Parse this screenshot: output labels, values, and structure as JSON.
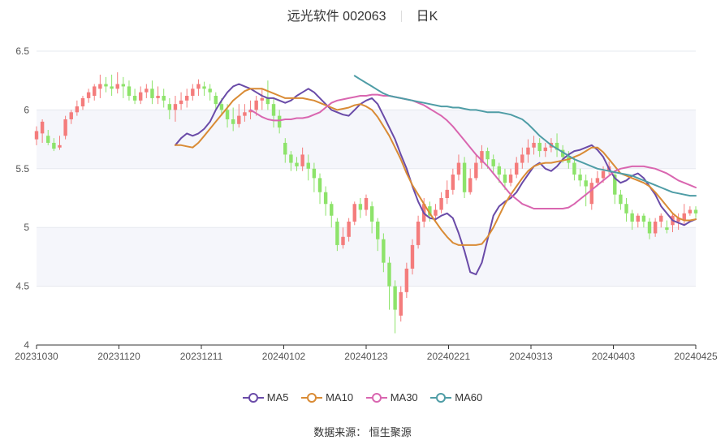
{
  "header": {
    "stock": "远光软件 002063",
    "period": "日K"
  },
  "source": "数据来源： 恒生聚源",
  "chart_data": {
    "type": "candlestick",
    "ylim": [
      4,
      6.5
    ],
    "yticks": [
      "6.5",
      "6",
      "5.5",
      "5",
      "4.5",
      "4"
    ],
    "xticks": [
      "20231030",
      "20231120",
      "20231211",
      "20240102",
      "20240123",
      "20240221",
      "20240313",
      "20240403",
      "20240425"
    ],
    "grid": true,
    "legend_position": "bottom-center",
    "colors": {
      "up": "#f47c7c",
      "down": "#8de36a",
      "MA5": "#6a4ba8",
      "MA10": "#d98b35",
      "MA30": "#d966b0",
      "MA60": "#4f9da6"
    },
    "candles": [
      [
        5.75,
        5.82,
        5.7,
        5.86
      ],
      [
        5.8,
        5.9,
        5.72,
        5.92
      ],
      [
        5.78,
        5.72,
        5.7,
        5.83
      ],
      [
        5.72,
        5.67,
        5.65,
        5.76
      ],
      [
        5.68,
        5.7,
        5.66,
        5.78
      ],
      [
        5.78,
        5.92,
        5.75,
        5.95
      ],
      [
        5.92,
        5.98,
        5.88,
        6.0
      ],
      [
        5.98,
        6.03,
        5.95,
        6.08
      ],
      [
        6.03,
        6.1,
        6.0,
        6.12
      ],
      [
        6.1,
        6.15,
        6.06,
        6.18
      ],
      [
        6.12,
        6.2,
        6.08,
        6.22
      ],
      [
        6.18,
        6.22,
        6.1,
        6.3
      ],
      [
        6.22,
        6.2,
        6.15,
        6.28
      ],
      [
        6.2,
        6.18,
        6.12,
        6.3
      ],
      [
        6.18,
        6.22,
        6.14,
        6.32
      ],
      [
        6.22,
        6.2,
        6.1,
        6.28
      ],
      [
        6.2,
        6.12,
        6.08,
        6.25
      ],
      [
        6.12,
        6.08,
        6.05,
        6.18
      ],
      [
        6.08,
        6.15,
        6.05,
        6.2
      ],
      [
        6.15,
        6.18,
        6.1,
        6.22
      ],
      [
        6.18,
        6.1,
        6.05,
        6.25
      ],
      [
        6.1,
        6.12,
        6.05,
        6.2
      ],
      [
        6.12,
        6.08,
        6.02,
        6.18
      ],
      [
        6.05,
        6.0,
        5.92,
        6.1
      ],
      [
        6.0,
        6.05,
        5.9,
        6.12
      ],
      [
        6.05,
        6.08,
        6.0,
        6.15
      ],
      [
        6.08,
        6.12,
        6.02,
        6.18
      ],
      [
        6.12,
        6.18,
        6.08,
        6.22
      ],
      [
        6.18,
        6.22,
        6.12,
        6.26
      ],
      [
        6.2,
        6.18,
        6.12,
        6.24
      ],
      [
        6.18,
        6.15,
        6.08,
        6.22
      ],
      [
        6.12,
        6.05,
        6.0,
        6.15
      ],
      [
        6.05,
        6.0,
        5.95,
        6.1
      ],
      [
        6.0,
        5.92,
        5.85,
        6.05
      ],
      [
        5.92,
        5.88,
        5.82,
        6.02
      ],
      [
        5.88,
        5.95,
        5.85,
        6.05
      ],
      [
        5.95,
        5.98,
        5.9,
        6.05
      ],
      [
        5.98,
        6.0,
        5.92,
        6.08
      ],
      [
        6.0,
        6.08,
        5.95,
        6.12
      ],
      [
        6.08,
        6.1,
        6.0,
        6.18
      ],
      [
        6.1,
        6.05,
        6.0,
        6.25
      ],
      [
        6.05,
        5.95,
        5.85,
        6.1
      ],
      [
        5.95,
        5.85,
        5.8,
        6.0
      ],
      [
        5.72,
        5.62,
        5.55,
        5.76
      ],
      [
        5.62,
        5.55,
        5.48,
        5.65
      ],
      [
        5.55,
        5.52,
        5.48,
        5.6
      ],
      [
        5.52,
        5.62,
        5.48,
        5.68
      ],
      [
        5.55,
        5.5,
        5.4,
        5.62
      ],
      [
        5.5,
        5.42,
        5.3,
        5.55
      ],
      [
        5.42,
        5.3,
        5.2,
        5.46
      ],
      [
        5.3,
        5.2,
        5.1,
        5.35
      ],
      [
        5.2,
        5.1,
        5.0,
        5.22
      ],
      [
        5.05,
        4.85,
        4.8,
        5.08
      ],
      [
        4.85,
        4.92,
        4.82,
        5.0
      ],
      [
        4.92,
        5.05,
        4.88,
        5.08
      ],
      [
        5.05,
        5.2,
        5.02,
        5.22
      ],
      [
        5.2,
        5.15,
        5.08,
        5.25
      ],
      [
        5.15,
        5.25,
        5.1,
        5.28
      ],
      [
        5.18,
        5.05,
        4.95,
        5.22
      ],
      [
        5.05,
        4.9,
        4.8,
        5.08
      ],
      [
        4.9,
        4.7,
        4.62,
        4.95
      ],
      [
        4.7,
        4.5,
        4.3,
        4.75
      ],
      [
        4.5,
        4.3,
        4.1,
        4.55
      ],
      [
        4.25,
        4.45,
        4.2,
        4.5
      ],
      [
        4.45,
        4.65,
        4.4,
        4.7
      ],
      [
        4.65,
        4.85,
        4.6,
        4.9
      ],
      [
        4.85,
        5.05,
        4.82,
        5.1
      ],
      [
        5.05,
        5.2,
        5.0,
        5.25
      ],
      [
        5.18,
        5.1,
        5.05,
        5.22
      ],
      [
        5.1,
        5.15,
        5.05,
        5.2
      ],
      [
        5.15,
        5.25,
        5.12,
        5.3
      ],
      [
        5.25,
        5.32,
        5.2,
        5.4
      ],
      [
        5.32,
        5.45,
        5.28,
        5.5
      ],
      [
        5.45,
        5.55,
        5.4,
        5.62
      ],
      [
        5.55,
        5.3,
        5.25,
        5.6
      ],
      [
        5.3,
        5.42,
        5.28,
        5.5
      ],
      [
        5.42,
        5.55,
        5.4,
        5.62
      ],
      [
        5.55,
        5.65,
        5.5,
        5.7
      ],
      [
        5.65,
        5.58,
        5.5,
        5.68
      ],
      [
        5.58,
        5.52,
        5.45,
        5.62
      ],
      [
        5.52,
        5.45,
        5.38,
        5.55
      ],
      [
        5.45,
        5.38,
        5.32,
        5.5
      ],
      [
        5.38,
        5.45,
        5.35,
        5.5
      ],
      [
        5.45,
        5.55,
        5.42,
        5.6
      ],
      [
        5.55,
        5.62,
        5.5,
        5.68
      ],
      [
        5.62,
        5.68,
        5.55,
        5.75
      ],
      [
        5.68,
        5.72,
        5.62,
        5.78
      ],
      [
        5.72,
        5.65,
        5.6,
        5.76
      ],
      [
        5.65,
        5.68,
        5.6,
        5.72
      ],
      [
        5.68,
        5.72,
        5.64,
        5.76
      ],
      [
        5.72,
        5.66,
        5.6,
        5.8
      ],
      [
        5.66,
        5.6,
        5.55,
        5.7
      ],
      [
        5.6,
        5.55,
        5.5,
        5.65
      ],
      [
        5.55,
        5.45,
        5.4,
        5.6
      ],
      [
        5.45,
        5.4,
        5.35,
        5.5
      ],
      [
        5.4,
        5.35,
        5.18,
        5.45
      ],
      [
        5.2,
        5.38,
        5.15,
        5.42
      ],
      [
        5.38,
        5.42,
        5.35,
        5.48
      ],
      [
        5.42,
        5.48,
        5.38,
        5.52
      ],
      [
        5.48,
        5.52,
        5.45,
        5.56
      ],
      [
        5.45,
        5.28,
        5.2,
        5.48
      ],
      [
        5.28,
        5.2,
        5.15,
        5.32
      ],
      [
        5.2,
        5.12,
        5.05,
        5.25
      ],
      [
        5.12,
        5.05,
        4.98,
        5.15
      ],
      [
        5.05,
        5.1,
        5.0,
        5.12
      ],
      [
        5.1,
        5.05,
        5.0,
        5.12
      ],
      [
        5.05,
        4.95,
        4.9,
        5.08
      ],
      [
        4.95,
        5.05,
        4.92,
        5.08
      ],
      [
        5.05,
        5.1,
        5.0,
        5.12
      ],
      [
        5.0,
        4.98,
        4.95,
        5.06
      ],
      [
        5.02,
        5.1,
        4.96,
        5.12
      ],
      [
        5.05,
        5.08,
        4.98,
        5.12
      ],
      [
        5.06,
        5.12,
        5.02,
        5.2
      ],
      [
        5.12,
        5.15,
        5.1,
        5.18
      ],
      [
        5.15,
        5.12,
        5.08,
        5.18
      ]
    ],
    "series": [
      {
        "name": "MA5",
        "values": [
          5.7,
          5.76,
          5.8,
          5.78,
          5.8,
          5.84,
          5.9,
          6.0,
          6.08,
          6.15,
          6.2,
          6.22,
          6.2,
          6.18,
          6.15,
          6.12,
          6.1,
          6.1,
          6.08,
          6.06,
          6.08,
          6.12,
          6.15,
          6.18,
          6.15,
          6.1,
          6.05,
          6.0,
          5.98,
          5.96,
          5.95,
          6.0,
          6.05,
          6.08,
          6.1,
          6.05,
          5.95,
          5.85,
          5.75,
          5.62,
          5.5,
          5.35,
          5.22,
          5.12,
          5.08,
          5.07,
          5.1,
          5.12,
          5.08,
          4.95,
          4.8,
          4.62,
          4.6,
          4.7,
          4.9,
          5.1,
          5.18,
          5.22,
          5.25,
          5.3,
          5.38,
          5.45,
          5.52,
          5.55,
          5.5,
          5.48,
          5.52,
          5.58,
          5.62,
          5.65,
          5.66,
          5.68,
          5.7,
          5.66,
          5.6,
          5.5,
          5.42,
          5.38,
          5.4,
          5.44,
          5.46,
          5.42,
          5.35,
          5.28,
          5.18,
          5.12,
          5.06,
          5.04,
          5.02,
          5.05,
          5.07
        ]
      },
      {
        "name": "MA10",
        "values": [
          5.7,
          5.7,
          5.69,
          5.68,
          5.72,
          5.78,
          5.84,
          5.9,
          5.96,
          6.02,
          6.08,
          6.12,
          6.16,
          6.18,
          6.18,
          6.18,
          6.16,
          6.14,
          6.12,
          6.1,
          6.1,
          6.1,
          6.1,
          6.09,
          6.08,
          6.06,
          6.04,
          6.02,
          6.0,
          6.01,
          6.02,
          6.04,
          6.05,
          6.03,
          6.0,
          5.94,
          5.86,
          5.78,
          5.68,
          5.58,
          5.46,
          5.36,
          5.28,
          5.2,
          5.12,
          5.05,
          4.98,
          4.92,
          4.87,
          4.85,
          4.85,
          4.85,
          4.85,
          4.86,
          4.92,
          5.0,
          5.1,
          5.2,
          5.28,
          5.35,
          5.42,
          5.48,
          5.52,
          5.54,
          5.55,
          5.55,
          5.56,
          5.57,
          5.58,
          5.6,
          5.62,
          5.65,
          5.68,
          5.68,
          5.64,
          5.58,
          5.52,
          5.46,
          5.44,
          5.42,
          5.4,
          5.38,
          5.35,
          5.3,
          5.24,
          5.18,
          5.12,
          5.08,
          5.06,
          5.06,
          5.07
        ]
      },
      {
        "name": "MA30",
        "values": [
          6.0,
          5.97,
          5.94,
          5.92,
          5.91,
          5.91,
          5.92,
          5.92,
          5.93,
          5.93,
          5.94,
          5.96,
          5.98,
          6.02,
          6.06,
          6.08,
          6.09,
          6.1,
          6.11,
          6.12,
          6.12,
          6.13,
          6.13,
          6.12,
          6.12,
          6.11,
          6.1,
          6.09,
          6.08,
          6.06,
          6.04,
          6.01,
          5.98,
          5.95,
          5.91,
          5.86,
          5.8,
          5.74,
          5.68,
          5.62,
          5.57,
          5.52,
          5.46,
          5.4,
          5.34,
          5.28,
          5.24,
          5.2,
          5.18,
          5.16,
          5.16,
          5.16,
          5.16,
          5.16,
          5.16,
          5.17,
          5.2,
          5.24,
          5.28,
          5.32,
          5.36,
          5.4,
          5.44,
          5.48,
          5.5,
          5.51,
          5.52,
          5.52,
          5.52,
          5.51,
          5.5,
          5.48,
          5.46,
          5.43,
          5.4,
          5.38,
          5.36,
          5.34
        ]
      },
      {
        "name": "MA60",
        "values": [
          6.29,
          6.26,
          6.23,
          6.2,
          6.17,
          6.14,
          6.12,
          6.11,
          6.1,
          6.09,
          6.08,
          6.07,
          6.06,
          6.05,
          6.04,
          6.03,
          6.03,
          6.02,
          6.02,
          6.01,
          6.0,
          6.0,
          5.99,
          5.98,
          5.98,
          5.98,
          5.97,
          5.96,
          5.94,
          5.92,
          5.88,
          5.83,
          5.78,
          5.74,
          5.7,
          5.67,
          5.64,
          5.61,
          5.58,
          5.56,
          5.54,
          5.52,
          5.5,
          5.49,
          5.48,
          5.47,
          5.46,
          5.45,
          5.44,
          5.42,
          5.4,
          5.38,
          5.36,
          5.34,
          5.32,
          5.3,
          5.29,
          5.28,
          5.27,
          5.27
        ]
      }
    ]
  }
}
